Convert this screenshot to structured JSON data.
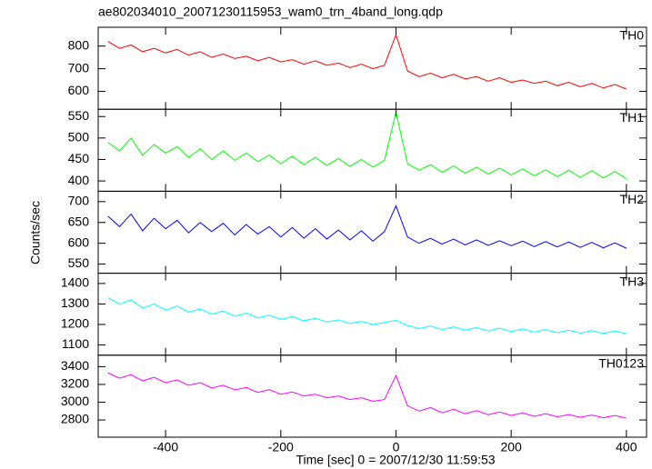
{
  "chart_data": {
    "type": "line",
    "title": "ae802034010_20071230115953_wam0_trn_4band_long.qdp",
    "xlabel": "Time [sec] 0 = 2007/12/30 11:59:53",
    "ylabel": "Counts/sec",
    "xlim": [
      -517,
      435
    ],
    "xticks": [
      -400,
      -200,
      0,
      200,
      400
    ],
    "x": [
      -500,
      -480,
      -460,
      -440,
      -420,
      -400,
      -380,
      -360,
      -340,
      -320,
      -300,
      -280,
      -260,
      -240,
      -220,
      -200,
      -180,
      -160,
      -140,
      -120,
      -100,
      -80,
      -60,
      -40,
      -20,
      0,
      20,
      40,
      60,
      80,
      100,
      120,
      140,
      160,
      180,
      200,
      220,
      240,
      260,
      280,
      300,
      320,
      340,
      360,
      380,
      400
    ],
    "panels": [
      {
        "name": "TH0",
        "color": "#ff0000",
        "ylim": [
          521,
          883
        ],
        "yticks": [
          600,
          700,
          800
        ],
        "values": [
          820,
          790,
          805,
          775,
          790,
          770,
          785,
          760,
          775,
          750,
          765,
          745,
          755,
          735,
          750,
          730,
          740,
          720,
          735,
          715,
          725,
          705,
          720,
          700,
          715,
          850,
          690,
          665,
          680,
          660,
          675,
          655,
          665,
          645,
          660,
          640,
          650,
          635,
          645,
          625,
          640,
          620,
          635,
          615,
          630,
          610
        ]
      },
      {
        "name": "TH1",
        "color": "#00ff00",
        "ylim": [
          376,
          567
        ],
        "yticks": [
          400,
          450,
          500,
          550
        ],
        "values": [
          490,
          470,
          500,
          460,
          485,
          465,
          480,
          455,
          475,
          450,
          470,
          448,
          465,
          445,
          460,
          440,
          458,
          438,
          455,
          436,
          452,
          434,
          450,
          432,
          448,
          560,
          440,
          425,
          438,
          420,
          435,
          418,
          432,
          416,
          430,
          414,
          428,
          412,
          426,
          410,
          425,
          408,
          424,
          407,
          422,
          405
        ]
      },
      {
        "name": "TH2",
        "color": "#0000ff",
        "ylim": [
          528,
          725
        ],
        "yticks": [
          550,
          600,
          650,
          700
        ],
        "values": [
          665,
          640,
          670,
          630,
          660,
          635,
          655,
          625,
          650,
          628,
          648,
          620,
          645,
          622,
          640,
          615,
          638,
          612,
          635,
          610,
          632,
          608,
          630,
          605,
          628,
          690,
          615,
          600,
          612,
          598,
          610,
          596,
          608,
          595,
          606,
          594,
          605,
          592,
          604,
          591,
          603,
          590,
          602,
          589,
          601,
          588
        ]
      },
      {
        "name": "TH3",
        "color": "#00ffff",
        "ylim": [
          1050,
          1450
        ],
        "yticks": [
          1100,
          1200,
          1300,
          1400
        ],
        "values": [
          1330,
          1300,
          1320,
          1280,
          1300,
          1270,
          1290,
          1260,
          1275,
          1250,
          1265,
          1240,
          1255,
          1232,
          1245,
          1225,
          1238,
          1218,
          1230,
          1212,
          1222,
          1205,
          1215,
          1200,
          1210,
          1220,
          1195,
          1180,
          1192,
          1175,
          1188,
          1172,
          1185,
          1168,
          1182,
          1165,
          1178,
          1162,
          1175,
          1160,
          1172,
          1158,
          1170,
          1156,
          1168,
          1155
        ]
      },
      {
        "name": "TH0123",
        "color": "#ff00ff",
        "ylim": [
          2606,
          3529
        ],
        "yticks": [
          2800,
          3000,
          3200,
          3400
        ],
        "values": [
          3330,
          3270,
          3310,
          3240,
          3280,
          3220,
          3250,
          3190,
          3220,
          3160,
          3190,
          3140,
          3165,
          3110,
          3140,
          3090,
          3115,
          3070,
          3090,
          3050,
          3070,
          3030,
          3050,
          3010,
          3030,
          3300,
          2960,
          2900,
          2940,
          2880,
          2920,
          2870,
          2905,
          2860,
          2890,
          2850,
          2880,
          2840,
          2870,
          2835,
          2860,
          2830,
          2855,
          2825,
          2850,
          2820
        ]
      }
    ]
  }
}
